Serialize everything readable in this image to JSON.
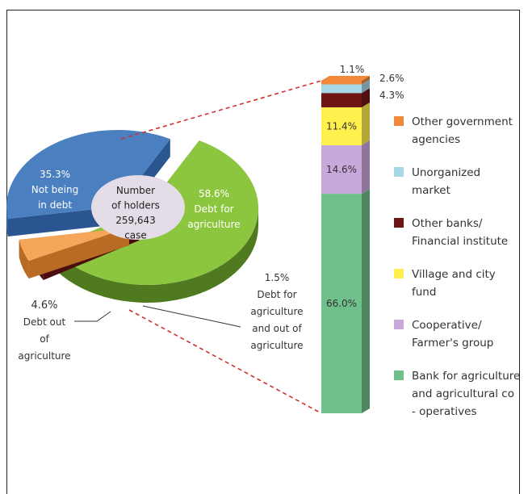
{
  "chart_data": [
    {
      "type": "pie",
      "center_label": [
        "Number",
        "of holders",
        "259,643",
        "case"
      ],
      "slices": [
        {
          "key": "agri",
          "label_lines": [
            "Debt for",
            "agriculture"
          ],
          "pct_text": "58.6%",
          "value": 58.6,
          "color": "#8cc63f",
          "side": "#4f7a1f"
        },
        {
          "key": "both",
          "label_lines": [
            "Debt for",
            "agriculture",
            "and out of",
            "agriculture"
          ],
          "pct_text": "1.5%",
          "value": 1.5,
          "color": "#7a1a1e",
          "side": "#4a0c0f"
        },
        {
          "key": "out",
          "label_lines": [
            "Debt out",
            "of",
            "agriculture"
          ],
          "pct_text": "4.6%",
          "value": 4.6,
          "color": "#f5a65b",
          "side": "#b86b22"
        },
        {
          "key": "none",
          "label_lines": [
            "Not being",
            "in debt"
          ],
          "pct_text": "35.3%",
          "value": 35.3,
          "color": "#4a7fc0",
          "side": "#2a5590"
        }
      ]
    },
    {
      "type": "bar",
      "stacked": true,
      "categories": [
        "Debt for agriculture"
      ],
      "series": [
        {
          "name": "Bank for agriculture and agricultural co - operatives",
          "value": 66.0,
          "label": "66.0%",
          "color": "#6fc08a"
        },
        {
          "name": "Cooperative/ Farmer's group",
          "value": 14.6,
          "label": "14.6%",
          "color": "#c9a8dc"
        },
        {
          "name": "Village and city fund",
          "value": 11.4,
          "label": "11.4%",
          "color": "#fff04d"
        },
        {
          "name": "Other banks/ Financial institute",
          "value": 4.3,
          "label": "4.3%",
          "color": "#6e1616"
        },
        {
          "name": "Unorganized market",
          "value": 2.6,
          "label": "2.6%",
          "color": "#a8d8e8"
        },
        {
          "name": "Other government agencies",
          "value": 1.1,
          "label": "1.1%",
          "color": "#f08a3a"
        }
      ]
    }
  ],
  "legend": [
    {
      "lines": [
        "Other  government",
        "agencies"
      ],
      "color": "#f08a3a"
    },
    {
      "lines": [
        "Unorganized",
        "market"
      ],
      "color": "#a8d8e8"
    },
    {
      "lines": [
        "Other banks/",
        "Financial institute"
      ],
      "color": "#6e1616"
    },
    {
      "lines": [
        "Village and city",
        "fund"
      ],
      "color": "#fff04d"
    },
    {
      "lines": [
        "Cooperative/",
        "Farmer's group"
      ],
      "color": "#c9a8dc"
    },
    {
      "lines": [
        "Bank for agriculture",
        "and agricultural co",
        "- operatives"
      ],
      "color": "#6fc08a"
    }
  ]
}
